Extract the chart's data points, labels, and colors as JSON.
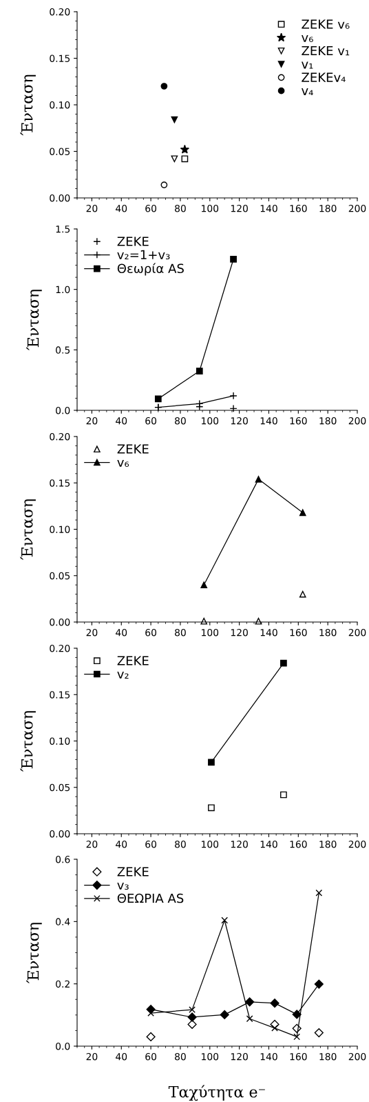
{
  "chart_data": [
    {
      "type": "scatter",
      "ylabel": "Ένταση",
      "xlim": [
        10,
        200
      ],
      "xticks": [
        20,
        40,
        60,
        80,
        100,
        120,
        140,
        160,
        180,
        200
      ],
      "ylim": [
        0,
        0.2
      ],
      "yticks": [
        {
          "value": 0,
          "label": "0.00"
        },
        {
          "value": 0.05,
          "label": "0.05"
        },
        {
          "value": 0.1,
          "label": "0.10"
        },
        {
          "value": 0.15,
          "label": "0.15"
        },
        {
          "value": 0.2,
          "label": "0.20"
        }
      ],
      "legend": "top right",
      "grid": false,
      "series": [
        {
          "name": "ZEKE v₆",
          "marker": "square",
          "color": "#ffffff",
          "x": [
            83
          ],
          "values": [
            0.042
          ]
        },
        {
          "name": "v₆",
          "marker": "star",
          "color": "#000000",
          "x": [
            83
          ],
          "values": [
            0.052
          ]
        },
        {
          "name": "ZEKE v₁",
          "marker": "triangle_down",
          "color": "#ffffff",
          "x": [
            76
          ],
          "values": [
            0.042
          ]
        },
        {
          "name": "v₁",
          "marker": "triangle_down",
          "color": "#000000",
          "x": [
            76
          ],
          "values": [
            0.084
          ]
        },
        {
          "name": "ZEKEv₄",
          "marker": "circle",
          "color": "#ffffff",
          "x": [
            69
          ],
          "values": [
            0.014
          ]
        },
        {
          "name": "v₄",
          "marker": "circle",
          "color": "#000000",
          "x": [
            69
          ],
          "values": [
            0.12
          ]
        }
      ]
    },
    {
      "type": "line",
      "ylabel": "Ένταση",
      "xlim": [
        10,
        200
      ],
      "xticks": [
        20,
        40,
        60,
        80,
        100,
        120,
        140,
        160,
        180,
        200
      ],
      "ylim": [
        0,
        1.5
      ],
      "yticks": [
        {
          "value": 0,
          "label": "0.0"
        },
        {
          "value": 0.5,
          "label": "0.5"
        },
        {
          "value": 1.0,
          "label": "1.0"
        },
        {
          "value": 1.5,
          "label": "1.5"
        }
      ],
      "legend": "top left",
      "grid": false,
      "series": [
        {
          "name": "ZEKE",
          "type": "scatter",
          "marker": "plus",
          "color": "#000000",
          "x": [
            65,
            93,
            116
          ],
          "values": [
            0.025,
            0.03,
            0.015
          ]
        },
        {
          "name": "v₂=1+v₃",
          "marker": "plus",
          "color": "#000000",
          "x": [
            65,
            93,
            116
          ],
          "values": [
            0.025,
            0.055,
            0.12
          ]
        },
        {
          "name": "Θεωρία AS",
          "marker": "square",
          "color": "#000000",
          "x": [
            65,
            93,
            116
          ],
          "values": [
            0.095,
            0.325,
            1.25
          ]
        }
      ]
    },
    {
      "type": "line",
      "ylabel": "Ένταση",
      "xlim": [
        10,
        200
      ],
      "xticks": [
        20,
        40,
        60,
        80,
        100,
        120,
        140,
        160,
        180,
        200
      ],
      "ylim": [
        0,
        0.2
      ],
      "yticks": [
        {
          "value": 0,
          "label": "0.00"
        },
        {
          "value": 0.05,
          "label": "0.05"
        },
        {
          "value": 0.1,
          "label": "0.10"
        },
        {
          "value": 0.15,
          "label": "0.15"
        },
        {
          "value": 0.2,
          "label": "0.20"
        }
      ],
      "legend": "top left",
      "grid": false,
      "series": [
        {
          "name": "ZEKE",
          "type": "scatter",
          "marker": "triangle",
          "color": "#ffffff",
          "x": [
            96,
            133,
            163
          ],
          "values": [
            0.001,
            0.001,
            0.03
          ]
        },
        {
          "name": "v₆",
          "marker": "triangle",
          "color": "#000000",
          "x": [
            96,
            133,
            163
          ],
          "values": [
            0.04,
            0.154,
            0.118
          ]
        }
      ]
    },
    {
      "type": "line",
      "ylabel": "Ένταση",
      "xlim": [
        10,
        200
      ],
      "xticks": [
        20,
        40,
        60,
        80,
        100,
        120,
        140,
        160,
        180,
        200
      ],
      "ylim": [
        0,
        0.2
      ],
      "yticks": [
        {
          "value": 0,
          "label": "0.00"
        },
        {
          "value": 0.05,
          "label": "0.05"
        },
        {
          "value": 0.1,
          "label": "0.10"
        },
        {
          "value": 0.15,
          "label": "0.15"
        },
        {
          "value": 0.2,
          "label": "0.20"
        }
      ],
      "legend": "top left",
      "grid": false,
      "series": [
        {
          "name": "ZEKE",
          "type": "scatter",
          "marker": "square",
          "color": "#ffffff",
          "x": [
            101,
            150
          ],
          "values": [
            0.028,
            0.042
          ]
        },
        {
          "name": "v₂",
          "marker": "square",
          "color": "#000000",
          "x": [
            101,
            150
          ],
          "values": [
            0.077,
            0.184
          ]
        }
      ]
    },
    {
      "type": "line",
      "ylabel": "Ένταση",
      "xlabel": "Ταχύτητα e⁻",
      "xlim": [
        10,
        200
      ],
      "xticks": [
        20,
        40,
        60,
        80,
        100,
        120,
        140,
        160,
        180,
        200
      ],
      "ylim": [
        0,
        0.6
      ],
      "yticks": [
        {
          "value": 0,
          "label": "0.0"
        },
        {
          "value": 0.2,
          "label": "0.2"
        },
        {
          "value": 0.4,
          "label": "0.4"
        },
        {
          "value": 0.6,
          "label": "0.6"
        }
      ],
      "legend": "top left",
      "grid": false,
      "series": [
        {
          "name": "ZEKE",
          "type": "scatter",
          "marker": "diamond",
          "color": "#ffffff",
          "x": [
            60,
            88,
            144,
            159,
            174
          ],
          "values": [
            0.03,
            0.07,
            0.07,
            0.057,
            0.043
          ]
        },
        {
          "name": "v₃",
          "marker": "diamond",
          "color": "#000000",
          "x": [
            60,
            88,
            110,
            127,
            144,
            159,
            174
          ],
          "values": [
            0.118,
            0.093,
            0.101,
            0.142,
            0.138,
            0.102,
            0.199
          ]
        },
        {
          "name": "ΘΕΩΡΙΑ AS",
          "marker": "cross",
          "color": "#000000",
          "x": [
            60,
            88,
            110,
            127,
            144,
            159,
            174
          ],
          "values": [
            0.106,
            0.117,
            0.404,
            0.088,
            0.058,
            0.03,
            0.492
          ]
        }
      ]
    }
  ]
}
